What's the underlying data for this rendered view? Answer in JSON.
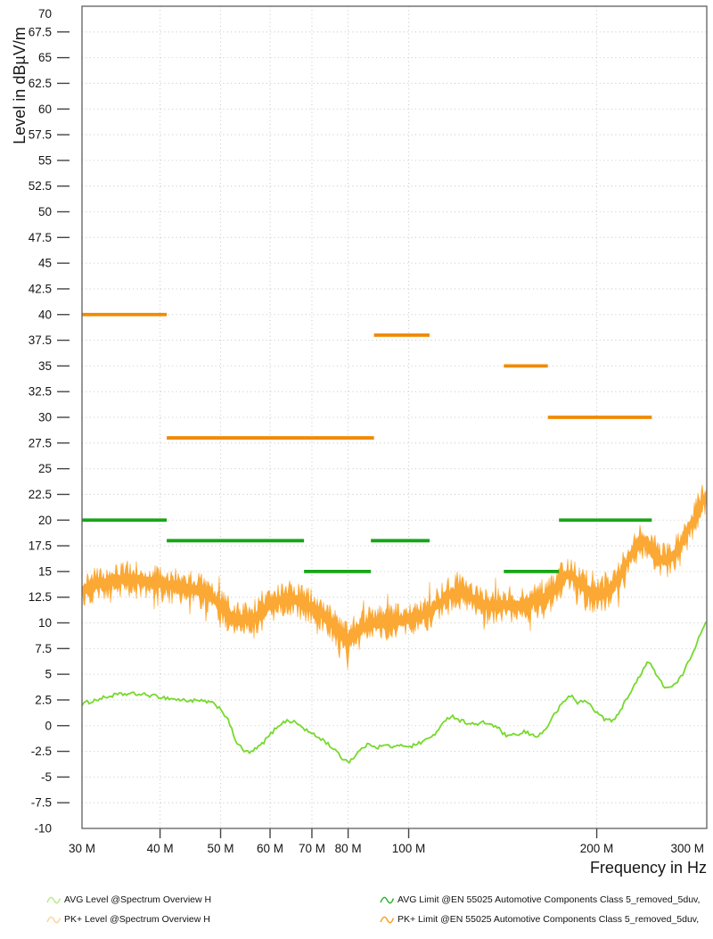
{
  "chart_data": {
    "type": "line",
    "title": "",
    "grid": "dotted",
    "legend_position": "bottom",
    "x_axis": {
      "label": "Frequency in Hz",
      "scale": "log",
      "min_mhz": 30,
      "max_mhz": 300,
      "ticks": [
        {
          "mhz": 30,
          "label": "30 M",
          "grid": false,
          "tick": false,
          "anchor": "middle"
        },
        {
          "mhz": 40,
          "label": "40 M",
          "grid": true,
          "tick": true,
          "anchor": "middle"
        },
        {
          "mhz": 50,
          "label": "50 M",
          "grid": true,
          "tick": true,
          "anchor": "middle"
        },
        {
          "mhz": 60,
          "label": "60 M",
          "grid": true,
          "tick": true,
          "anchor": "middle"
        },
        {
          "mhz": 70,
          "label": "70 M",
          "grid": true,
          "tick": true,
          "anchor": "middle"
        },
        {
          "mhz": 80,
          "label": "80 M",
          "grid": true,
          "tick": true,
          "anchor": "middle"
        },
        {
          "mhz": 100,
          "label": "100 M",
          "grid": true,
          "tick": true,
          "anchor": "middle"
        },
        {
          "mhz": 200,
          "label": "200 M",
          "grid": true,
          "tick": true,
          "anchor": "middle"
        },
        {
          "mhz": 300,
          "label": "300 M",
          "grid": false,
          "tick": false,
          "anchor": "end"
        }
      ]
    },
    "y_axis": {
      "label": "Level in dBµV/m",
      "min": -10,
      "max": 70,
      "tick_step": 2.5,
      "ticks": [
        {
          "v": 70,
          "label": "70"
        },
        {
          "v": 67.5,
          "label": "67.5"
        },
        {
          "v": 65,
          "label": "65"
        },
        {
          "v": 62.5,
          "label": "62.5"
        },
        {
          "v": 60,
          "label": "60"
        },
        {
          "v": 57.5,
          "label": "57.5"
        },
        {
          "v": 55,
          "label": "55"
        },
        {
          "v": 52.5,
          "label": "52.5"
        },
        {
          "v": 50,
          "label": "50"
        },
        {
          "v": 47.5,
          "label": "47.5"
        },
        {
          "v": 45,
          "label": "45"
        },
        {
          "v": 42.5,
          "label": "42.5"
        },
        {
          "v": 40,
          "label": "40"
        },
        {
          "v": 37.5,
          "label": "37.5"
        },
        {
          "v": 35,
          "label": "35"
        },
        {
          "v": 32.5,
          "label": "32.5"
        },
        {
          "v": 30,
          "label": "30"
        },
        {
          "v": 27.5,
          "label": "27.5"
        },
        {
          "v": 25,
          "label": "25"
        },
        {
          "v": 22.5,
          "label": "22.5"
        },
        {
          "v": 20,
          "label": "20"
        },
        {
          "v": 17.5,
          "label": "17.5"
        },
        {
          "v": 15,
          "label": "15"
        },
        {
          "v": 12.5,
          "label": "12.5"
        },
        {
          "v": 10,
          "label": "10"
        },
        {
          "v": 7.5,
          "label": "7.5"
        },
        {
          "v": 5,
          "label": "5"
        },
        {
          "v": 2.5,
          "label": "2.5"
        },
        {
          "v": 0,
          "label": "0"
        },
        {
          "v": -2.5,
          "label": "-2.5"
        },
        {
          "v": -5,
          "label": "-5"
        },
        {
          "v": -7.5,
          "label": "-7.5"
        },
        {
          "v": -10,
          "label": "-10"
        }
      ]
    },
    "series": [
      {
        "name": "AVG Level @Spectrum Overview H",
        "type": "trace",
        "color": "#76d92e",
        "legend_icon_color": "#b5eb86",
        "jitter_db": 0.18,
        "points_mhz_db": [
          [
            30,
            2.1
          ],
          [
            32,
            2.6
          ],
          [
            34,
            3.0
          ],
          [
            36,
            3.1
          ],
          [
            38,
            3.0
          ],
          [
            40,
            2.8
          ],
          [
            43,
            2.5
          ],
          [
            46,
            2.4
          ],
          [
            48,
            2.3
          ],
          [
            50,
            1.7
          ],
          [
            51.5,
            0.4
          ],
          [
            53,
            -1.6
          ],
          [
            54.5,
            -2.5
          ],
          [
            56,
            -2.6
          ],
          [
            58,
            -1.9
          ],
          [
            60,
            -0.9
          ],
          [
            62,
            0.1
          ],
          [
            64,
            0.5
          ],
          [
            66,
            0.3
          ],
          [
            68,
            -0.3
          ],
          [
            70,
            -0.8
          ],
          [
            73,
            -1.4
          ],
          [
            76,
            -2.3
          ],
          [
            78,
            -3.1
          ],
          [
            80,
            -3.5
          ],
          [
            81,
            -3.3
          ],
          [
            83,
            -2.6
          ],
          [
            85,
            -2.0
          ],
          [
            87,
            -1.8
          ],
          [
            89,
            -2.1
          ],
          [
            92,
            -1.9
          ],
          [
            95,
            -2.1
          ],
          [
            98,
            -1.9
          ],
          [
            101,
            -2.0
          ],
          [
            104,
            -1.7
          ],
          [
            108,
            -1.2
          ],
          [
            112,
            -0.4
          ],
          [
            115,
            0.8
          ],
          [
            118,
            0.9
          ],
          [
            121,
            0.5
          ],
          [
            124,
            0.3
          ],
          [
            128,
            0.1
          ],
          [
            132,
            0.3
          ],
          [
            136,
            0.1
          ],
          [
            140,
            -0.4
          ],
          [
            143,
            -1.0
          ],
          [
            146,
            -1.1
          ],
          [
            148,
            -0.7
          ],
          [
            150,
            -1.0
          ],
          [
            153,
            -0.6
          ],
          [
            156,
            -0.8
          ],
          [
            159,
            -1.0
          ],
          [
            162,
            -0.9
          ],
          [
            165,
            -0.5
          ],
          [
            168,
            0.3
          ],
          [
            172,
            1.3
          ],
          [
            176,
            2.1
          ],
          [
            180,
            2.8
          ],
          [
            183,
            2.9
          ],
          [
            185,
            2.4
          ],
          [
            187,
            2.2
          ],
          [
            190,
            2.4
          ],
          [
            193,
            2.3
          ],
          [
            196,
            1.9
          ],
          [
            200,
            1.3
          ],
          [
            205,
            0.7
          ],
          [
            210,
            0.5
          ],
          [
            214,
            0.6
          ],
          [
            218,
            1.4
          ],
          [
            222,
            2.5
          ],
          [
            226,
            3.1
          ],
          [
            230,
            3.9
          ],
          [
            234,
            4.8
          ],
          [
            238,
            5.7
          ],
          [
            241,
            6.2
          ],
          [
            244,
            6.0
          ],
          [
            248,
            5.2
          ],
          [
            252,
            4.4
          ],
          [
            257,
            3.8
          ],
          [
            262,
            3.7
          ],
          [
            266,
            3.9
          ],
          [
            270,
            4.3
          ],
          [
            275,
            5.1
          ],
          [
            280,
            6.1
          ],
          [
            285,
            7.1
          ],
          [
            290,
            8.3
          ],
          [
            295,
            9.4
          ],
          [
            300,
            10.4
          ]
        ]
      },
      {
        "name": "PK+ Level @Spectrum Overview H",
        "type": "noisy-trace",
        "color": "#fba834",
        "legend_icon_color": "#f9d49c",
        "noise_band_db": 1.2,
        "points_mhz_db": [
          [
            30,
            13.2
          ],
          [
            32,
            13.8
          ],
          [
            34,
            14.2
          ],
          [
            36,
            14.3
          ],
          [
            38,
            14.1
          ],
          [
            40,
            13.8
          ],
          [
            42,
            13.6
          ],
          [
            44,
            13.4
          ],
          [
            46,
            13.2
          ],
          [
            48,
            12.7
          ],
          [
            50,
            11.7
          ],
          [
            52,
            10.6
          ],
          [
            54,
            10.2
          ],
          [
            56,
            10.4
          ],
          [
            58,
            10.9
          ],
          [
            60,
            11.7
          ],
          [
            62,
            12.2
          ],
          [
            64,
            12.4
          ],
          [
            66,
            12.2
          ],
          [
            68,
            11.9
          ],
          [
            70,
            11.5
          ],
          [
            72,
            11.0
          ],
          [
            74,
            10.4
          ],
          [
            76,
            9.6
          ],
          [
            78,
            8.8
          ],
          [
            80,
            8.2
          ],
          [
            82,
            8.7
          ],
          [
            84,
            9.4
          ],
          [
            86,
            9.8
          ],
          [
            88,
            10.0
          ],
          [
            91,
            9.9
          ],
          [
            94,
            10.1
          ],
          [
            97,
            10.2
          ],
          [
            100,
            10.3
          ],
          [
            104,
            10.6
          ],
          [
            108,
            11.1
          ],
          [
            112,
            11.9
          ],
          [
            116,
            12.7
          ],
          [
            120,
            13.1
          ],
          [
            123,
            13.0
          ],
          [
            126,
            12.5
          ],
          [
            130,
            11.9
          ],
          [
            134,
            11.6
          ],
          [
            138,
            11.7
          ],
          [
            142,
            11.8
          ],
          [
            146,
            11.6
          ],
          [
            150,
            11.7
          ],
          [
            154,
            11.9
          ],
          [
            158,
            12.2
          ],
          [
            162,
            12.2
          ],
          [
            166,
            12.4
          ],
          [
            170,
            13.0
          ],
          [
            174,
            13.9
          ],
          [
            178,
            14.6
          ],
          [
            181,
            14.7
          ],
          [
            185,
            14.3
          ],
          [
            189,
            13.6
          ],
          [
            193,
            13.1
          ],
          [
            198,
            12.7
          ],
          [
            202,
            12.6
          ],
          [
            207,
            13.0
          ],
          [
            212,
            13.6
          ],
          [
            216,
            14.2
          ],
          [
            220,
            15.1
          ],
          [
            224,
            16.0
          ],
          [
            228,
            16.9
          ],
          [
            232,
            17.5
          ],
          [
            236,
            17.9
          ],
          [
            240,
            17.8
          ],
          [
            244,
            17.4
          ],
          [
            248,
            16.8
          ],
          [
            252,
            16.3
          ],
          [
            257,
            16.0
          ],
          [
            262,
            16.2
          ],
          [
            266,
            16.6
          ],
          [
            270,
            17.2
          ],
          [
            275,
            18.1
          ],
          [
            280,
            19.0
          ],
          [
            285,
            19.9
          ],
          [
            290,
            20.9
          ],
          [
            295,
            21.7
          ],
          [
            300,
            22.3
          ]
        ]
      },
      {
        "name": "AVG Limit @EN 55025 Automotive Components Class 5_removed_5duv,",
        "type": "limit",
        "color": "#17a517",
        "legend_icon_color": "#2db22d",
        "segments_mhz_db": [
          [
            30,
            41,
            20
          ],
          [
            41,
            68,
            18
          ],
          [
            68,
            87,
            15
          ],
          [
            87,
            108,
            18
          ],
          [
            142,
            174,
            15
          ],
          [
            174,
            245,
            20
          ]
        ]
      },
      {
        "name": "PK+ Limit @EN 55025 Automotive Components Class 5_removed_5duv,",
        "type": "limit",
        "color": "#f08a00",
        "legend_icon_color": "#f5a11d",
        "segments_mhz_db": [
          [
            30,
            41,
            40
          ],
          [
            41,
            88,
            28
          ],
          [
            88,
            108,
            38
          ],
          [
            142,
            167,
            35
          ],
          [
            167,
            245,
            30
          ]
        ]
      }
    ]
  }
}
